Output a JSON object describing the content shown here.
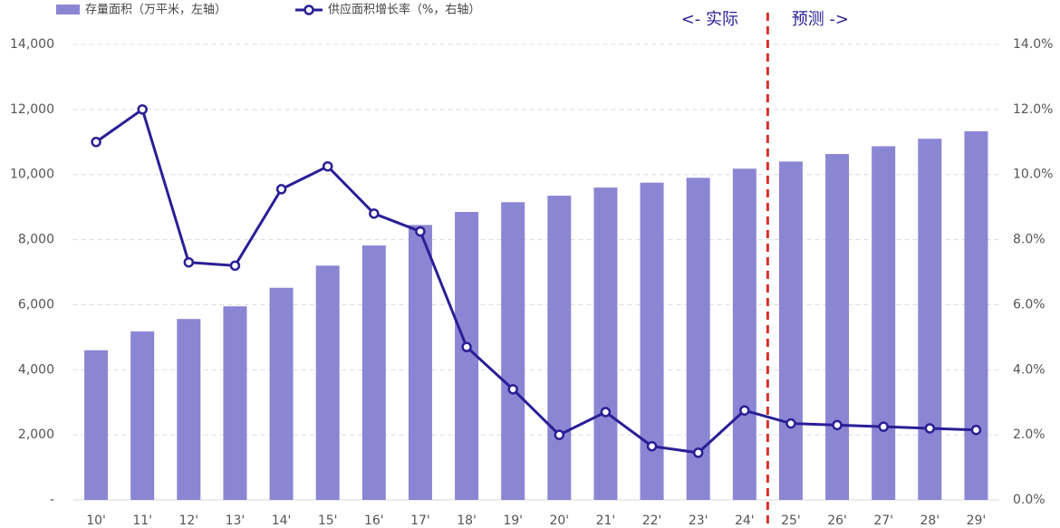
{
  "chart_data": {
    "type": "bar-line",
    "categories": [
      "10'",
      "11'",
      "12'",
      "13'",
      "14'",
      "15'",
      "16'",
      "17'",
      "18'",
      "19'",
      "20'",
      "21'",
      "22'",
      "23'",
      "24'",
      "25'",
      "26'",
      "27'",
      "28'",
      "29'"
    ],
    "series": [
      {
        "name": "存量面积（万平米，左轴）",
        "type": "bar",
        "color": "#8b86d3",
        "axis": "y",
        "values": [
          4600,
          5180,
          5560,
          5950,
          6520,
          7200,
          7820,
          8450,
          8850,
          9150,
          9350,
          9600,
          9750,
          9900,
          10180,
          10400,
          10630,
          10870,
          11100,
          11330
        ]
      },
      {
        "name": "供应面积增长率（%，右轴）",
        "type": "line",
        "color": "#2a1f96",
        "axis": "y2",
        "values": [
          11.0,
          12.0,
          7.3,
          7.2,
          9.55,
          10.25,
          8.8,
          8.25,
          4.7,
          3.4,
          2.0,
          2.7,
          1.65,
          1.45,
          2.75,
          2.35,
          2.3,
          2.25,
          2.2,
          2.15
        ]
      }
    ],
    "annotations": [
      "<- 实际",
      "预测 ->"
    ],
    "ylim": [
      0,
      14000
    ],
    "yticks": [
      {
        "value": 0,
        "label": "-"
      },
      {
        "value": 2000,
        "label": "2,000"
      },
      {
        "value": 4000,
        "label": "4,000"
      },
      {
        "value": 6000,
        "label": "6,000"
      },
      {
        "value": 8000,
        "label": "8,000"
      },
      {
        "value": 10000,
        "label": "10,000"
      },
      {
        "value": 12000,
        "label": "12,000"
      },
      {
        "value": 14000,
        "label": "14,000"
      }
    ],
    "y2lim": [
      0,
      14
    ],
    "y2ticks": [
      {
        "value": 0,
        "label": "0.0%"
      },
      {
        "value": 2,
        "label": "2.0%"
      },
      {
        "value": 4,
        "label": "4.0%"
      },
      {
        "value": 6,
        "label": "6.0%"
      },
      {
        "value": 8,
        "label": "8.0%"
      },
      {
        "value": 10,
        "label": "10.0%"
      },
      {
        "value": 12,
        "label": "12.0%"
      },
      {
        "value": 14,
        "label": "14.0%"
      }
    ],
    "grid": true,
    "legend": "top-left"
  }
}
